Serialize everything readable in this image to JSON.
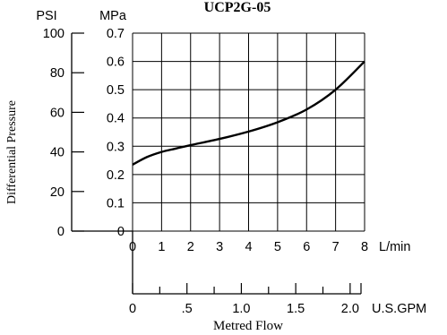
{
  "chart_data": {
    "type": "line",
    "title": "UCP2G-05",
    "ylabel": "Differential Pressure",
    "xlabel": "Metred Flow",
    "grid": true,
    "psi_axis": {
      "unit": "PSI",
      "ticks": [
        "100",
        "80",
        "60",
        "40",
        "20",
        "0"
      ],
      "values": [
        100,
        80,
        60,
        40,
        20,
        0
      ]
    },
    "mpa_axis": {
      "unit": "MPa",
      "ticks": [
        "0.7",
        "0.6",
        "0.5",
        "0.4",
        "0.3",
        "0.2",
        "0.1",
        "0"
      ],
      "values": [
        0.7,
        0.6,
        0.5,
        0.4,
        0.3,
        0.2,
        0.1,
        0
      ],
      "ylim": [
        0,
        0.7
      ]
    },
    "lmin_axis": {
      "unit": "L/min",
      "ticks": [
        "0",
        "1",
        "2",
        "3",
        "4",
        "5",
        "6",
        "7",
        "8"
      ],
      "values": [
        0,
        1,
        2,
        3,
        4,
        5,
        6,
        7,
        8
      ],
      "xlim": [
        0,
        8
      ]
    },
    "gpm_axis": {
      "unit": "U.S.GPM",
      "ticks": [
        "0",
        ".5",
        "1.0",
        "1.5",
        "2.0"
      ],
      "values": [
        0,
        0.5,
        1.0,
        1.5,
        2.0
      ]
    },
    "series": [
      {
        "x": [
          0,
          0.5,
          1,
          1.5,
          2,
          3,
          4,
          5,
          6,
          7,
          8
        ],
        "y": [
          0.235,
          0.262,
          0.28,
          0.292,
          0.304,
          0.326,
          0.352,
          0.385,
          0.43,
          0.5,
          0.6
        ]
      }
    ]
  }
}
